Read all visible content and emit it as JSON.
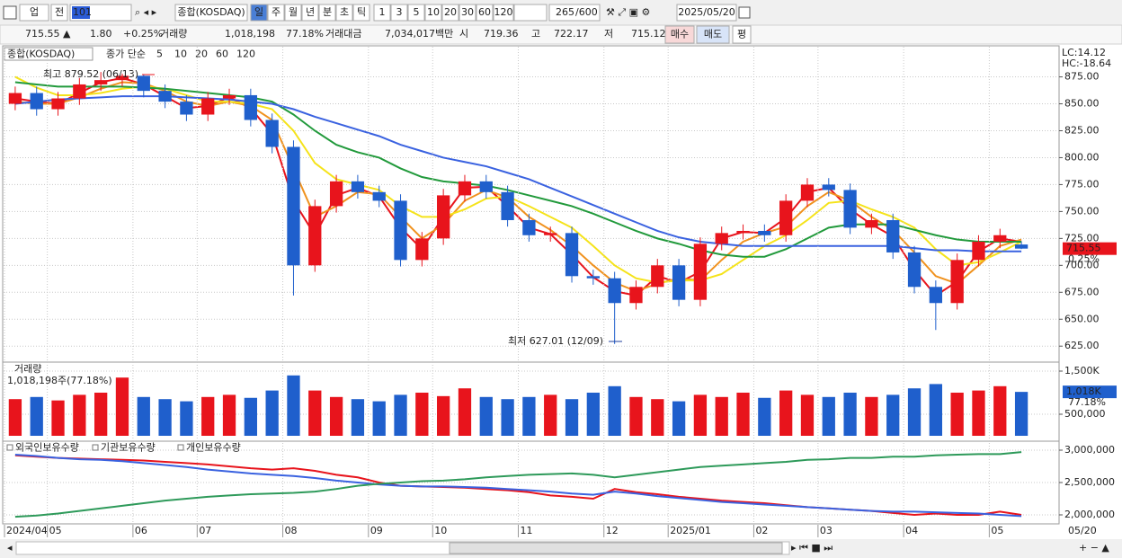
{
  "toolbar": {
    "market": "업",
    "prev": "전",
    "code": "101",
    "name": "종합(KOSDAQ)",
    "periods": [
      "일",
      "주",
      "월",
      "년",
      "분",
      "초",
      "틱"
    ],
    "counts": [
      "1",
      "3",
      "5",
      "10",
      "20",
      "30",
      "60",
      "120"
    ],
    "count": "265",
    "max": "/600",
    "date": "2025/05/20"
  },
  "info_bar": {
    "price": "715.55 ▲",
    "change": "1.80",
    "rate": "+0.25%",
    "volume_label": "거래량",
    "volume": "1,018,198",
    "volume_rate": "77.18%",
    "amount_label": "거래대금",
    "amount": "7,034,017백만",
    "open_label": "시",
    "open": "719.36",
    "high_label": "고",
    "high": "722.17",
    "low_label": "저",
    "low": "715.12",
    "buy": "매수",
    "sell": "매도",
    "avg": "평"
  },
  "chart_data": [
    {
      "type": "candlestick",
      "title": "종합(KOSDAQ)",
      "subtitle": "종가 단순",
      "up_color": "#e8141c",
      "down_color": "#1f5fcc",
      "open": [
        850,
        860,
        845,
        855,
        868,
        872,
        876,
        862,
        852,
        840,
        855,
        858,
        835,
        810,
        700,
        755,
        778,
        768,
        760,
        705,
        725,
        765,
        778,
        768,
        742,
        728,
        730,
        690,
        688,
        665,
        680,
        700,
        668,
        720,
        730,
        732,
        728,
        760,
        775,
        770,
        735,
        742,
        712,
        680,
        665,
        705,
        722,
        719.36
      ],
      "high": [
        866,
        866,
        861,
        874,
        879.52,
        878,
        877,
        868,
        858,
        861,
        864,
        864,
        841,
        816,
        761,
        784,
        784,
        774,
        766,
        731,
        771,
        784,
        784,
        774,
        748,
        736,
        736,
        696,
        694,
        686,
        706,
        706,
        726,
        736,
        738,
        738,
        766,
        781,
        781,
        776,
        748,
        748,
        718,
        686,
        711,
        728,
        734,
        722.17
      ],
      "low": [
        844,
        839,
        839,
        849,
        862,
        866,
        856,
        846,
        834,
        834,
        849,
        829,
        804,
        672,
        694,
        749,
        762,
        754,
        699,
        699,
        719,
        759,
        762,
        736,
        722,
        722,
        684,
        682,
        627.01,
        659,
        674,
        662,
        662,
        714,
        724,
        722,
        722,
        754,
        764,
        729,
        729,
        706,
        674,
        640,
        659,
        699,
        716,
        715.12
      ],
      "close": [
        860,
        845,
        855,
        868,
        872,
        876,
        862,
        852,
        840,
        855,
        858,
        835,
        810,
        700,
        755,
        778,
        768,
        760,
        705,
        725,
        765,
        778,
        768,
        742,
        728,
        730,
        690,
        688,
        665,
        680,
        700,
        668,
        720,
        730,
        732,
        728,
        760,
        775,
        770,
        735,
        742,
        712,
        680,
        665,
        705,
        722,
        728,
        715.55
      ],
      "series": [
        {
          "name": "5",
          "color": "#e8141c",
          "values": [
            855,
            852,
            850,
            860,
            870,
            874,
            868,
            857,
            846,
            848,
            856,
            846,
            822,
            760,
            728,
            765,
            772,
            764,
            735,
            715,
            745,
            772,
            773,
            755,
            735,
            729,
            710,
            689,
            676,
            672,
            690,
            684,
            694,
            725,
            731,
            730,
            744,
            768,
            772,
            752,
            738,
            727,
            696,
            672,
            685,
            713,
            725,
            722
          ]
        },
        {
          "name": "10",
          "color": "#f0921e",
          "values": [
            852,
            850,
            850,
            856,
            864,
            870,
            869,
            862,
            852,
            848,
            852,
            848,
            835,
            790,
            745,
            755,
            768,
            766,
            745,
            725,
            738,
            760,
            770,
            763,
            745,
            733,
            718,
            700,
            684,
            676,
            683,
            688,
            686,
            705,
            722,
            730,
            736,
            755,
            768,
            760,
            745,
            733,
            712,
            690,
            683,
            700,
            718,
            724
          ]
        },
        {
          "name": "20",
          "color": "#f5e31a",
          "values": [
            875,
            865,
            858,
            858,
            860,
            864,
            866,
            864,
            858,
            852,
            852,
            850,
            845,
            825,
            795,
            780,
            775,
            770,
            755,
            745,
            745,
            752,
            762,
            764,
            755,
            745,
            735,
            718,
            700,
            688,
            684,
            686,
            686,
            692,
            705,
            718,
            728,
            742,
            758,
            760,
            752,
            745,
            735,
            715,
            700,
            703,
            712,
            722
          ]
        },
        {
          "name": "60",
          "color": "#229a3c",
          "values": [
            870,
            868,
            866,
            866,
            866,
            866,
            865,
            864,
            862,
            860,
            858,
            856,
            852,
            840,
            825,
            812,
            805,
            800,
            790,
            782,
            778,
            776,
            774,
            770,
            765,
            760,
            755,
            748,
            740,
            732,
            725,
            720,
            714,
            710,
            708,
            708,
            715,
            725,
            735,
            738,
            738,
            738,
            733,
            728,
            724,
            722,
            722,
            722
          ]
        },
        {
          "name": "120",
          "color": "#3a62e0",
          "values": [
            850,
            852,
            854,
            855,
            856,
            857,
            857,
            857,
            856,
            855,
            854,
            852,
            850,
            845,
            838,
            832,
            826,
            820,
            812,
            806,
            800,
            796,
            792,
            786,
            780,
            772,
            764,
            756,
            748,
            740,
            732,
            726,
            722,
            720,
            718,
            718,
            718,
            718,
            718,
            718,
            718,
            718,
            716,
            714,
            714,
            713,
            713,
            713
          ]
        }
      ],
      "ylim": [
        611,
        903
      ],
      "yticks": [
        {
          "value": 625,
          "label": "625.00"
        },
        {
          "value": 650,
          "label": "650.00"
        },
        {
          "value": 675,
          "label": "675.00"
        },
        {
          "value": 700,
          "label": "700.00"
        },
        {
          "value": 725,
          "label": "725.00"
        },
        {
          "value": 750,
          "label": "750.00"
        },
        {
          "value": 775,
          "label": "775.00"
        },
        {
          "value": 800,
          "label": "800.00"
        },
        {
          "value": 825,
          "label": "825.00"
        },
        {
          "value": 850,
          "label": "850.00"
        },
        {
          "value": 875,
          "label": "875.00"
        }
      ],
      "annotations": [
        "최고 879.52 (06/13)",
        "최저 627.01 (12/09)"
      ],
      "side_labels": [
        "LC:14.12",
        "HC:-18.64"
      ],
      "last_label": "715.55",
      "last_rate": "0.25%",
      "grid": true
    },
    {
      "type": "bar",
      "title": "거래량",
      "subtitle": "1,018,198주(77.18%)",
      "values": [
        850000,
        900000,
        820000,
        950000,
        1000000,
        1350000,
        900000,
        850000,
        800000,
        900000,
        950000,
        880000,
        1050000,
        1400000,
        1050000,
        900000,
        850000,
        800000,
        950000,
        1000000,
        920000,
        1100000,
        900000,
        850000,
        900000,
        950000,
        850000,
        1000000,
        1150000,
        900000,
        850000,
        800000,
        950000,
        900000,
        1000000,
        880000,
        1050000,
        950000,
        900000,
        1000000,
        900000,
        950000,
        1100000,
        1200000,
        1000000,
        1050000,
        1150000,
        1018198
      ],
      "ylim": [
        -104000,
        1687500
      ],
      "yticks": [
        {
          "value": 500000,
          "label": "500,000"
        },
        {
          "value": 1500000,
          "label": "1,500K"
        }
      ],
      "last_label": "1,018K",
      "last_rate": "77.18%",
      "grid": true
    },
    {
      "type": "line",
      "categories": [
        "2024/04",
        null,
        "05",
        null,
        null,
        null,
        "06",
        null,
        null,
        "07",
        null,
        null,
        null,
        "08",
        null,
        null,
        null,
        "09",
        null,
        null,
        "10",
        null,
        null,
        null,
        "11",
        null,
        null,
        null,
        "12",
        null,
        null,
        "2025/01",
        null,
        null,
        null,
        "02",
        null,
        null,
        "03",
        null,
        null,
        null,
        "04",
        null,
        null,
        null,
        "05",
        null
      ],
      "end_label": "05/20",
      "series": [
        {
          "name": "외국인보유수량",
          "color": "#e8141c",
          "values": [
            2920000,
            2900000,
            2880000,
            2870000,
            2860000,
            2850000,
            2840000,
            2820000,
            2800000,
            2780000,
            2750000,
            2720000,
            2700000,
            2720000,
            2680000,
            2620000,
            2580000,
            2500000,
            2450000,
            2440000,
            2430000,
            2420000,
            2400000,
            2380000,
            2350000,
            2300000,
            2280000,
            2250000,
            2400000,
            2350000,
            2320000,
            2280000,
            2250000,
            2220000,
            2200000,
            2180000,
            2150000,
            2120000,
            2100000,
            2080000,
            2060000,
            2030000,
            2000000,
            2020000,
            2000000,
            2000000,
            2050000,
            2000000
          ]
        },
        {
          "name": "기관보유수량",
          "color": "#3a62e0",
          "values": [
            2930000,
            2910000,
            2880000,
            2860000,
            2850000,
            2830000,
            2800000,
            2770000,
            2740000,
            2700000,
            2670000,
            2640000,
            2620000,
            2600000,
            2570000,
            2530000,
            2500000,
            2470000,
            2450000,
            2440000,
            2440000,
            2430000,
            2420000,
            2400000,
            2380000,
            2360000,
            2330000,
            2310000,
            2360000,
            2330000,
            2290000,
            2260000,
            2230000,
            2200000,
            2180000,
            2160000,
            2140000,
            2120000,
            2100000,
            2080000,
            2060000,
            2050000,
            2050000,
            2040000,
            2030000,
            2020000,
            2000000,
            1980000
          ]
        },
        {
          "name": "개인보유수량",
          "color": "#2e9a5a",
          "values": [
            1970000,
            1990000,
            2020000,
            2060000,
            2100000,
            2140000,
            2180000,
            2220000,
            2250000,
            2280000,
            2300000,
            2320000,
            2330000,
            2340000,
            2360000,
            2400000,
            2450000,
            2480000,
            2500000,
            2520000,
            2530000,
            2550000,
            2580000,
            2600000,
            2620000,
            2630000,
            2640000,
            2620000,
            2580000,
            2620000,
            2660000,
            2700000,
            2740000,
            2760000,
            2780000,
            2800000,
            2820000,
            2850000,
            2860000,
            2880000,
            2880000,
            2900000,
            2900000,
            2920000,
            2930000,
            2940000,
            2940000,
            2970000
          ]
        }
      ],
      "ylim": [
        1861000,
        3125000
      ],
      "yticks": [
        {
          "value": 2000000,
          "label": "2,000,000"
        },
        {
          "value": 2500000,
          "label": "2,500,000"
        },
        {
          "value": 3000000,
          "label": "3,000,000"
        }
      ],
      "grid": true
    }
  ]
}
